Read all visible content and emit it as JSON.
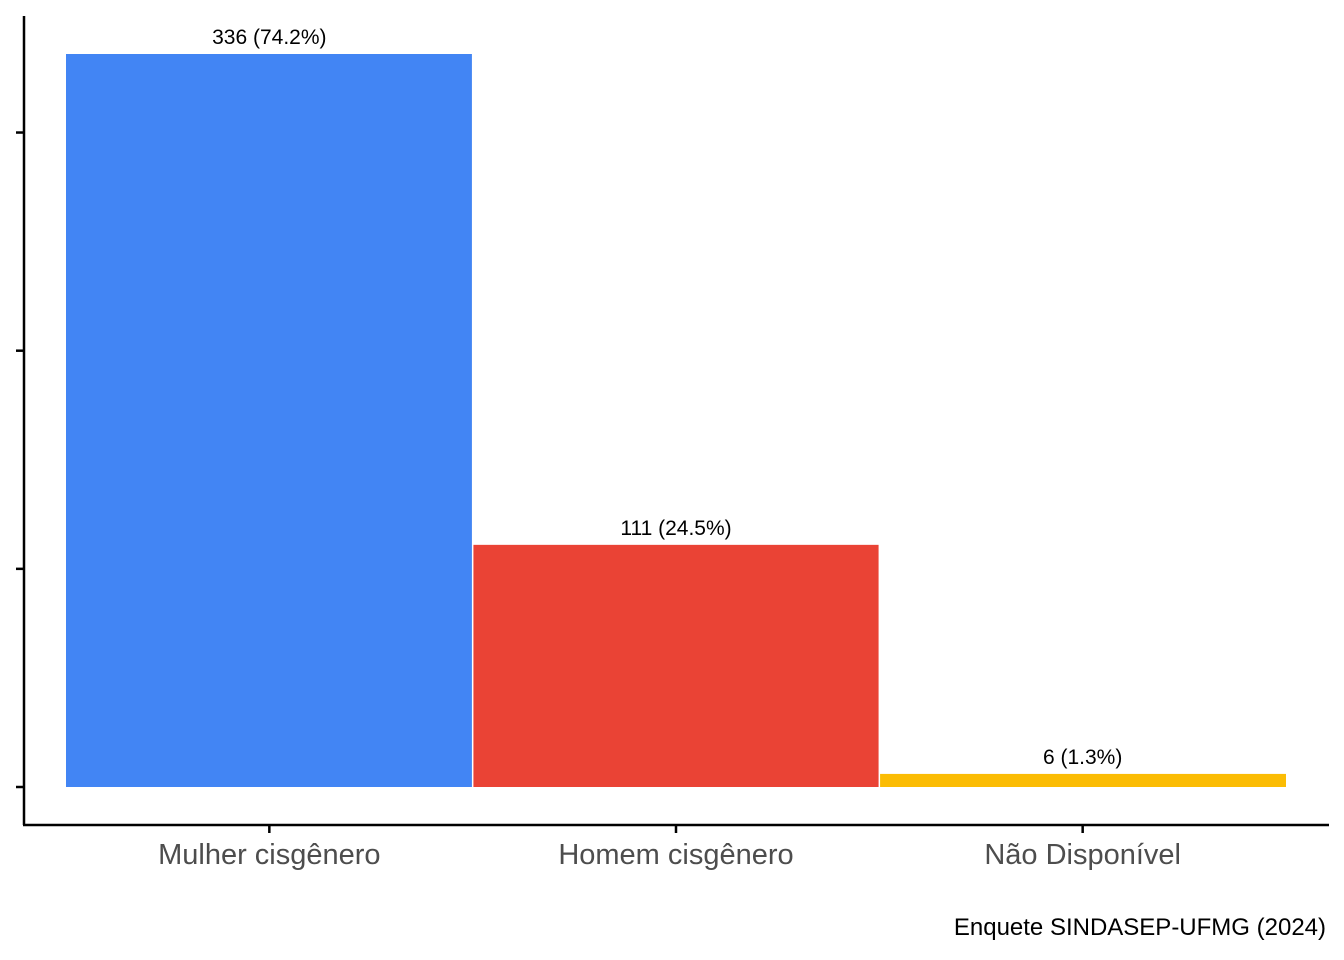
{
  "chart_data": {
    "type": "bar",
    "categories": [
      "Mulher cisgênero",
      "Homem cisgênero",
      "Não Disponível"
    ],
    "values": [
      336,
      111,
      6
    ],
    "value_labels": [
      "336 (74.2%)",
      "111 (24.5%)",
      "6 (1.3%)"
    ],
    "colors": [
      "#4285F4",
      "#EA4335",
      "#FBBC04"
    ],
    "ylim": [
      0,
      336
    ],
    "y_ticks": [
      0,
      100,
      200,
      300
    ],
    "y_tick_labels_shown": false,
    "grid": false,
    "legend": "none",
    "caption": "Enquete SINDASEP-UFMG (2024)"
  }
}
